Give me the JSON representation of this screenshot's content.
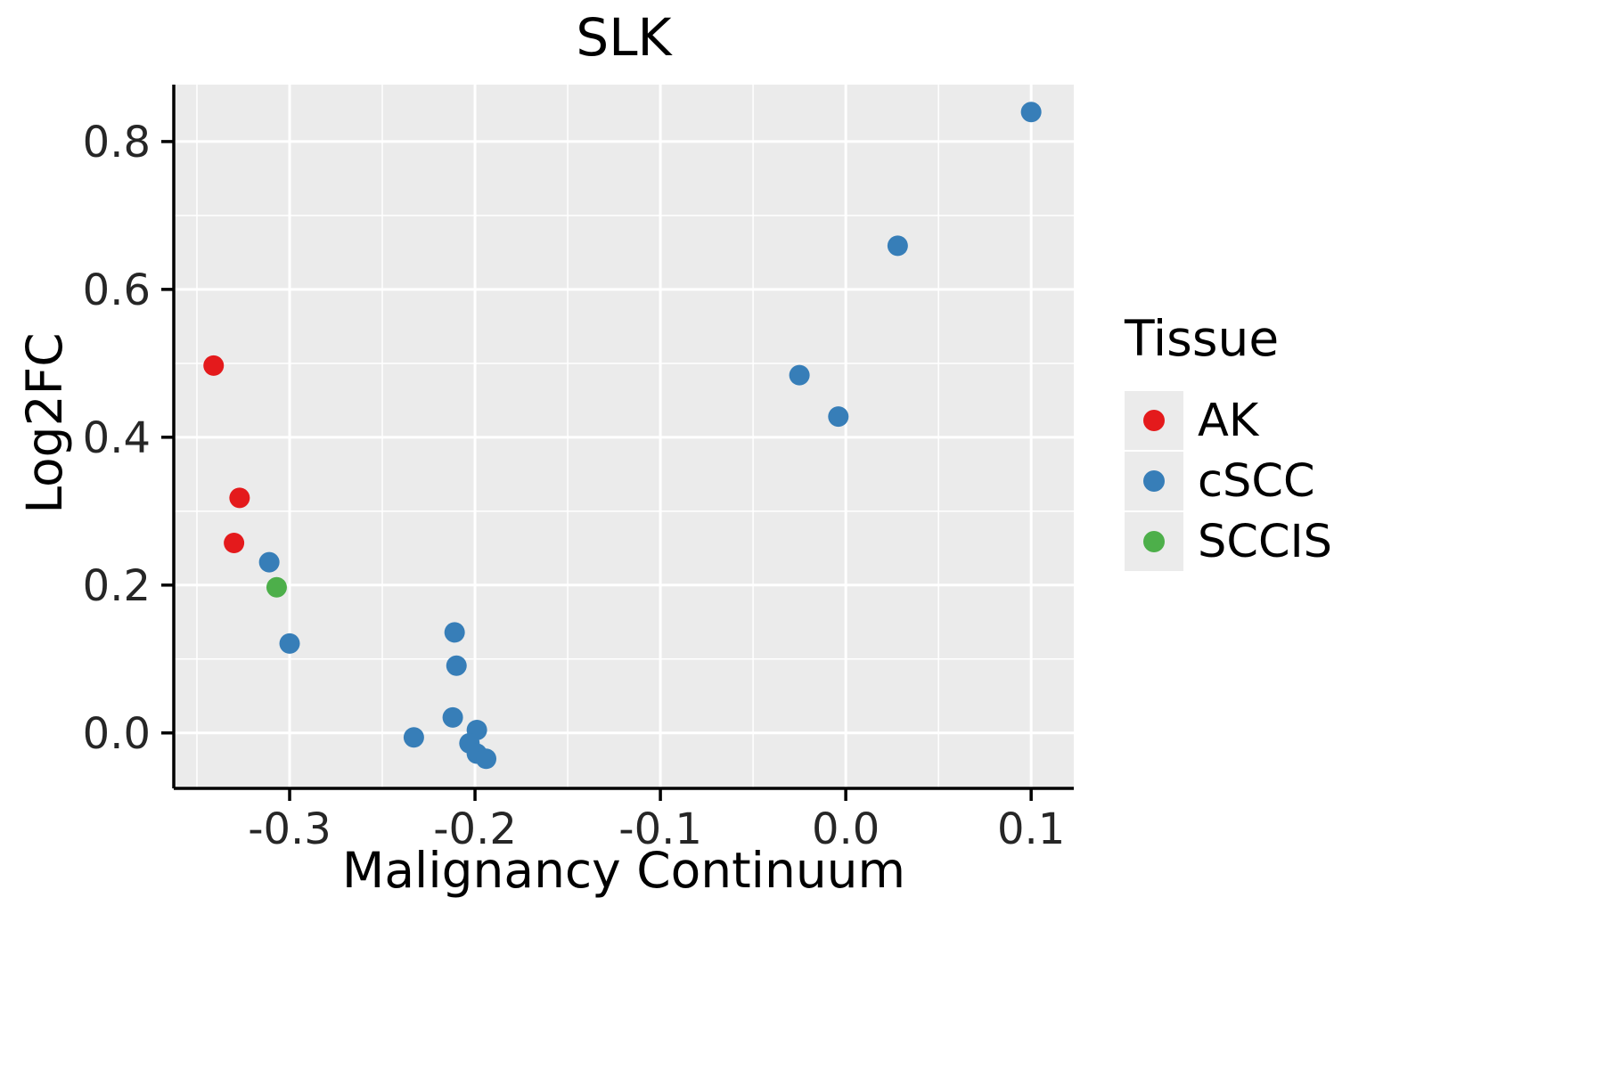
{
  "title": "SLK",
  "legend": {
    "title": "Tissue",
    "entries": [
      {
        "label": "AK",
        "color": "#E41A1C"
      },
      {
        "label": "cSCC",
        "color": "#377EB8"
      },
      {
        "label": "SCCIS",
        "color": "#4DAF4A"
      }
    ]
  },
  "style": {
    "panel_bg": "#EBEBEB",
    "grid_color": "#FFFFFF",
    "axis_color": "#000000",
    "point_radius": 11.5
  },
  "chart_data": {
    "type": "scatter",
    "title": "SLK",
    "xlabel": "Malignancy Continuum",
    "ylabel": "Log2FC",
    "xlim": [
      -0.3625,
      0.123
    ],
    "ylim": [
      -0.075,
      0.877
    ],
    "x_ticks": [
      -0.3,
      -0.2,
      -0.1,
      0.0,
      0.1
    ],
    "y_ticks": [
      0.0,
      0.2,
      0.4,
      0.6,
      0.8
    ],
    "grid": true,
    "legend_title": "Tissue",
    "legend_position": "right",
    "series": [
      {
        "name": "AK",
        "color": "#E41A1C",
        "points": [
          [
            -0.341,
            0.497
          ],
          [
            -0.327,
            0.318
          ],
          [
            -0.33,
            0.257
          ]
        ]
      },
      {
        "name": "cSCC",
        "color": "#377EB8",
        "points": [
          [
            -0.311,
            0.231
          ],
          [
            -0.3,
            0.121
          ],
          [
            -0.233,
            -0.006
          ],
          [
            -0.211,
            0.136
          ],
          [
            -0.21,
            0.091
          ],
          [
            -0.212,
            0.021
          ],
          [
            -0.199,
            0.004
          ],
          [
            -0.203,
            -0.014
          ],
          [
            -0.199,
            -0.028
          ],
          [
            -0.194,
            -0.035
          ],
          [
            -0.025,
            0.484
          ],
          [
            -0.004,
            0.428
          ],
          [
            0.028,
            0.659
          ],
          [
            0.1,
            0.84
          ]
        ]
      },
      {
        "name": "SCCIS",
        "color": "#4DAF4A",
        "points": [
          [
            -0.307,
            0.197
          ]
        ]
      }
    ]
  }
}
